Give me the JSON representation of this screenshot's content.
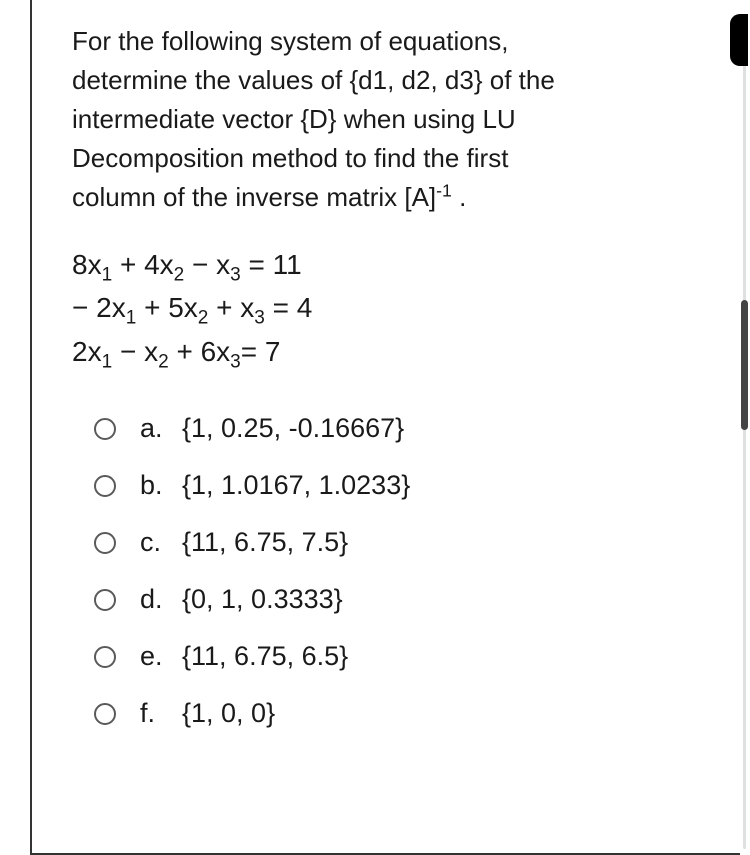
{
  "question": {
    "intro_lines": [
      "For the following system of equations,",
      "determine the values of {d1, d2, d3} of the",
      "intermediate vector {D} when using LU",
      "Decomposition method to find the first",
      "column of the inverse matrix [A]"
    ],
    "inverse_exponent": "-1",
    "period": " ."
  },
  "equations": {
    "eq1": "8x₁ + 4x₂ − x₃ = 11",
    "eq2": "− 2x₁ + 5x₂ + x₃ = 4",
    "eq3": "2x₁ − x₂ + 6x₃= 7"
  },
  "options": [
    {
      "letter": "a.",
      "value": "{1, 0.25, -0.16667}"
    },
    {
      "letter": "b.",
      "value": "{1, 1.0167, 1.0233}"
    },
    {
      "letter": "c.",
      "value": "{11, 6.75, 7.5}"
    },
    {
      "letter": "d.",
      "value": "{0, 1, 0.3333}"
    },
    {
      "letter": "e.",
      "value": "{11, 6.75, 6.5}"
    },
    {
      "letter": "f.",
      "value": "{1, 0, 0}"
    }
  ],
  "colors": {
    "text": "#1a1a1a",
    "border": "#333333",
    "radio_border": "#5a5a5a",
    "background": "#ffffff",
    "scrollbar_thumb": "#444444",
    "scrollbar_track": "#e0e0e0"
  },
  "font_sizes": {
    "question_pt": 26,
    "equation_pt": 28,
    "option_pt": 27
  }
}
